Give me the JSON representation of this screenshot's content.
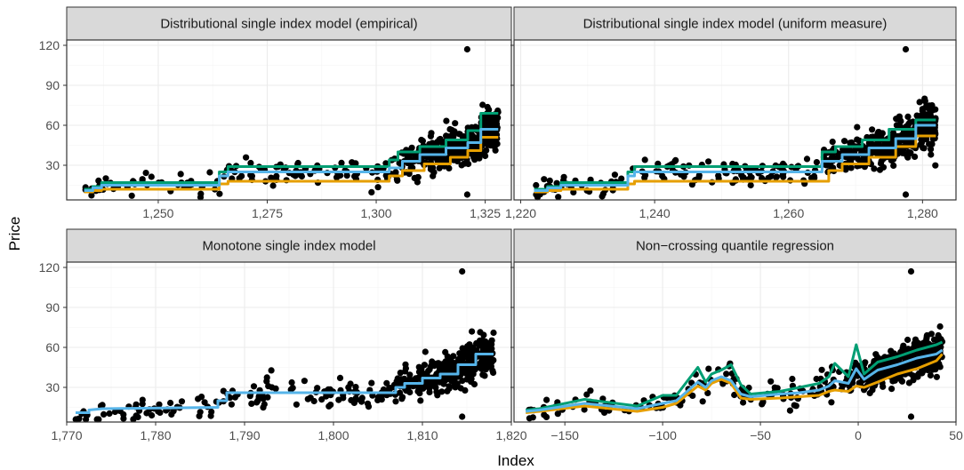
{
  "figure": {
    "xlabel": "Index",
    "ylabel": "Price"
  },
  "colors": {
    "upper_quantile": "#009E73",
    "median": "#56B4E9",
    "lower_quantile": "#E69F00",
    "points": "#000000"
  },
  "chart_data": [
    {
      "type": "scatter",
      "title": "Distributional single index model (empirical)",
      "xlim": [
        1229,
        1331
      ],
      "ylim": [
        4,
        124
      ],
      "x_ticks": [
        1250,
        1275,
        1300,
        1325
      ],
      "x_tick_labels": [
        "1,250",
        "1,275",
        "1,300",
        "1,325"
      ],
      "y_ticks": [
        30,
        60,
        90,
        120
      ],
      "y_tick_labels": [
        "30",
        "60",
        "90",
        "120"
      ],
      "grid": true,
      "series": [
        {
          "role": "upper_quantile",
          "x": [
            1233,
            1235,
            1235,
            1237,
            1237,
            1264,
            1264,
            1266,
            1266,
            1303,
            1303,
            1305,
            1305,
            1310,
            1310,
            1316,
            1316,
            1321,
            1321,
            1324,
            1324,
            1328
          ],
          "y": [
            12,
            12,
            14,
            14,
            17,
            17,
            25,
            25,
            29,
            29,
            34,
            34,
            40,
            40,
            44,
            44,
            49,
            49,
            56,
            56,
            69,
            69
          ]
        },
        {
          "role": "median",
          "x": [
            1233,
            1235,
            1235,
            1237,
            1237,
            1264,
            1264,
            1266,
            1266,
            1303,
            1303,
            1306,
            1306,
            1310,
            1310,
            1316,
            1316,
            1321,
            1321,
            1324,
            1324,
            1328
          ],
          "y": [
            11,
            11,
            13,
            13,
            15,
            15,
            22,
            22,
            25,
            25,
            28,
            28,
            33,
            33,
            38,
            38,
            43,
            43,
            47,
            47,
            57,
            57
          ]
        },
        {
          "role": "lower_quantile",
          "x": [
            1233,
            1235,
            1235,
            1237,
            1237,
            1264,
            1264,
            1266,
            1266,
            1303,
            1303,
            1306,
            1306,
            1311,
            1311,
            1317,
            1317,
            1321,
            1321,
            1324,
            1324,
            1328
          ],
          "y": [
            10,
            10,
            11,
            11,
            12,
            12,
            16,
            16,
            18,
            18,
            22,
            22,
            26,
            26,
            31,
            31,
            36,
            36,
            41,
            41,
            51,
            51
          ]
        }
      ]
    },
    {
      "type": "scatter",
      "title": "Distributional single index model (uniform measure)",
      "xlim": [
        1219,
        1285
      ],
      "ylim": [
        4,
        124
      ],
      "x_ticks": [
        1220,
        1240,
        1260,
        1280
      ],
      "x_tick_labels": [
        "1,220",
        "1,240",
        "1,260",
        "1,280"
      ],
      "y_ticks": [
        30,
        60,
        90,
        120
      ],
      "y_tick_labels": [
        "30",
        "60",
        "90",
        "120"
      ],
      "grid": true,
      "series": [
        {
          "role": "upper_quantile",
          "x": [
            1222,
            1224,
            1224,
            1226,
            1226,
            1236,
            1236,
            1237,
            1237,
            1265,
            1265,
            1267,
            1267,
            1271,
            1271,
            1275,
            1275,
            1279,
            1279,
            1282
          ],
          "y": [
            12,
            12,
            14,
            14,
            17,
            17,
            25,
            25,
            29,
            29,
            40,
            40,
            44,
            44,
            49,
            49,
            57,
            57,
            64,
            64
          ]
        },
        {
          "role": "median",
          "x": [
            1222,
            1224,
            1224,
            1226,
            1226,
            1236,
            1236,
            1237,
            1237,
            1265,
            1265,
            1268,
            1268,
            1272,
            1272,
            1276,
            1276,
            1279,
            1279,
            1282
          ],
          "y": [
            11,
            11,
            13,
            13,
            15,
            15,
            22,
            22,
            25,
            25,
            33,
            33,
            38,
            38,
            43,
            43,
            50,
            50,
            60,
            60
          ]
        },
        {
          "role": "lower_quantile",
          "x": [
            1222,
            1224,
            1224,
            1226,
            1226,
            1236,
            1236,
            1237,
            1237,
            1266,
            1266,
            1268,
            1268,
            1272,
            1272,
            1276,
            1276,
            1279,
            1279,
            1282
          ],
          "y": [
            10,
            10,
            11,
            11,
            12,
            12,
            16,
            16,
            18,
            18,
            26,
            26,
            31,
            31,
            36,
            36,
            44,
            44,
            52,
            52
          ]
        }
      ]
    },
    {
      "type": "scatter",
      "title": "Monotone single index model",
      "xlim": [
        1770,
        1820
      ],
      "ylim": [
        4,
        124
      ],
      "x_ticks": [
        1770,
        1780,
        1790,
        1800,
        1810,
        1820
      ],
      "x_tick_labels": [
        "1,770",
        "1,780",
        "1,790",
        "1,800",
        "1,810",
        "1,820"
      ],
      "y_ticks": [
        30,
        60,
        90,
        120
      ],
      "y_tick_labels": [
        "30",
        "60",
        "90",
        "120"
      ],
      "grid": true,
      "series": [
        {
          "role": "median",
          "x": [
            1771,
            1772.5,
            1772.5,
            1774,
            1787,
            1787,
            1788,
            1788,
            1807,
            1807,
            1808,
            1808,
            1810,
            1810,
            1812,
            1812,
            1814,
            1814,
            1816,
            1816,
            1818
          ],
          "y": [
            11,
            11,
            13,
            14,
            15,
            20,
            20,
            26,
            26,
            30,
            30,
            33,
            33,
            37,
            37,
            40,
            40,
            47,
            47,
            55,
            55
          ]
        }
      ]
    },
    {
      "type": "line",
      "title": "Non−crossing quantile regression",
      "xlim": [
        -176,
        50
      ],
      "ylim": [
        4,
        124
      ],
      "x_ticks": [
        -150,
        -100,
        -50,
        0,
        50
      ],
      "x_tick_labels": [
        "−150",
        "−100",
        "−50",
        "0",
        "50"
      ],
      "y_ticks": [
        30,
        60,
        90,
        120
      ],
      "y_tick_labels": [
        "30",
        "60",
        "90",
        "120"
      ],
      "grid": true,
      "series": [
        {
          "role": "upper_quantile",
          "x": [
            -170,
            -163,
            -140,
            -113,
            -100,
            -93,
            -82,
            -78,
            -75,
            -70,
            -65,
            -60,
            -55,
            -40,
            -30,
            -20,
            -15,
            -12,
            -5,
            -1,
            3,
            10,
            20,
            30,
            40,
            43
          ],
          "y": [
            13,
            14,
            21,
            16,
            24,
            24,
            45,
            34,
            40,
            43,
            47,
            32,
            25,
            27,
            30,
            33,
            38,
            48,
            38,
            62,
            40,
            49,
            53,
            58,
            62,
            64
          ]
        },
        {
          "role": "median",
          "x": [
            -170,
            -163,
            -140,
            -113,
            -100,
            -93,
            -82,
            -78,
            -75,
            -70,
            -65,
            -60,
            -55,
            -40,
            -30,
            -20,
            -15,
            -12,
            -5,
            -1,
            3,
            10,
            20,
            30,
            40,
            43
          ],
          "y": [
            12,
            13,
            18,
            14,
            18,
            20,
            34,
            30,
            35,
            38,
            35,
            25,
            23,
            25,
            26,
            28,
            31,
            35,
            33,
            44,
            36,
            43,
            47,
            52,
            55,
            58
          ]
        },
        {
          "role": "lower_quantile",
          "x": [
            -170,
            -163,
            -140,
            -113,
            -100,
            -93,
            -82,
            -78,
            -75,
            -70,
            -65,
            -60,
            -55,
            -40,
            -30,
            -20,
            -15,
            -12,
            -5,
            -1,
            3,
            10,
            20,
            30,
            40,
            43
          ],
          "y": [
            11,
            12,
            16,
            12,
            15,
            18,
            31,
            28,
            33,
            36,
            33,
            22,
            21,
            22,
            23,
            24,
            27,
            28,
            27,
            31,
            30,
            34,
            40,
            44,
            50,
            55
          ]
        }
      ]
    }
  ]
}
